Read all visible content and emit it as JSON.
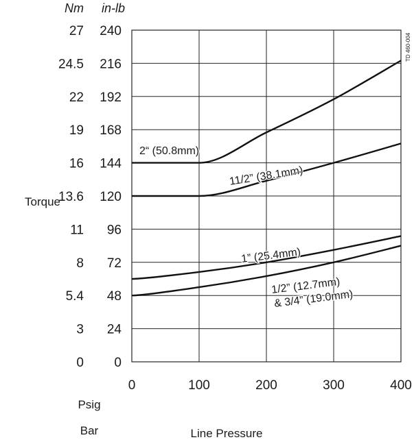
{
  "chart_data": {
    "type": "line",
    "title": "",
    "xlabel": "Line Pressure",
    "ylabel": "Torque",
    "x_unit_labels": [
      "Psig",
      "Bar"
    ],
    "y_units": {
      "nm": "Nm",
      "inlb": "in-lb"
    },
    "xlim": [
      0,
      400
    ],
    "ylim": [
      0,
      240
    ],
    "x_ticks": [
      "0",
      "100",
      "200",
      "300",
      "400"
    ],
    "y_ticks_inlb": [
      "0",
      "24",
      "48",
      "72",
      "96",
      "120",
      "144",
      "168",
      "192",
      "216",
      "240"
    ],
    "y_ticks_nm": [
      "0",
      "3",
      "5.4",
      "8",
      "11",
      "13.6",
      "16",
      "19",
      "22",
      "24.5",
      "27"
    ],
    "grid": true,
    "doc_code": "TD 460-004",
    "series": [
      {
        "name": "2“ (50.8mm)",
        "points": [
          [
            0,
            144
          ],
          [
            100,
            144
          ],
          [
            200,
            166
          ],
          [
            300,
            190
          ],
          [
            400,
            218
          ]
        ]
      },
      {
        "name": "11/2” (38.1mm)",
        "points": [
          [
            0,
            120
          ],
          [
            100,
            120
          ],
          [
            200,
            131
          ],
          [
            300,
            144
          ],
          [
            400,
            158
          ]
        ]
      },
      {
        "name": "1” (25.4mm)",
        "points": [
          [
            0,
            60
          ],
          [
            100,
            65
          ],
          [
            200,
            72
          ],
          [
            300,
            81
          ],
          [
            400,
            91
          ]
        ]
      },
      {
        "name": "1/2” (12.7mm) & 3/4” (19.0mm)",
        "points": [
          [
            0,
            48
          ],
          [
            100,
            54
          ],
          [
            200,
            62
          ],
          [
            300,
            72
          ],
          [
            400,
            84
          ]
        ]
      }
    ],
    "curve_labels": {
      "s0": "2“ (50.8mm)",
      "s1": "11/2” (38.1mm)",
      "s2": "1” (25.4mm)",
      "s3a": "1/2” (12.7mm)",
      "s3b": "& 3/4” (19.0mm)"
    }
  }
}
